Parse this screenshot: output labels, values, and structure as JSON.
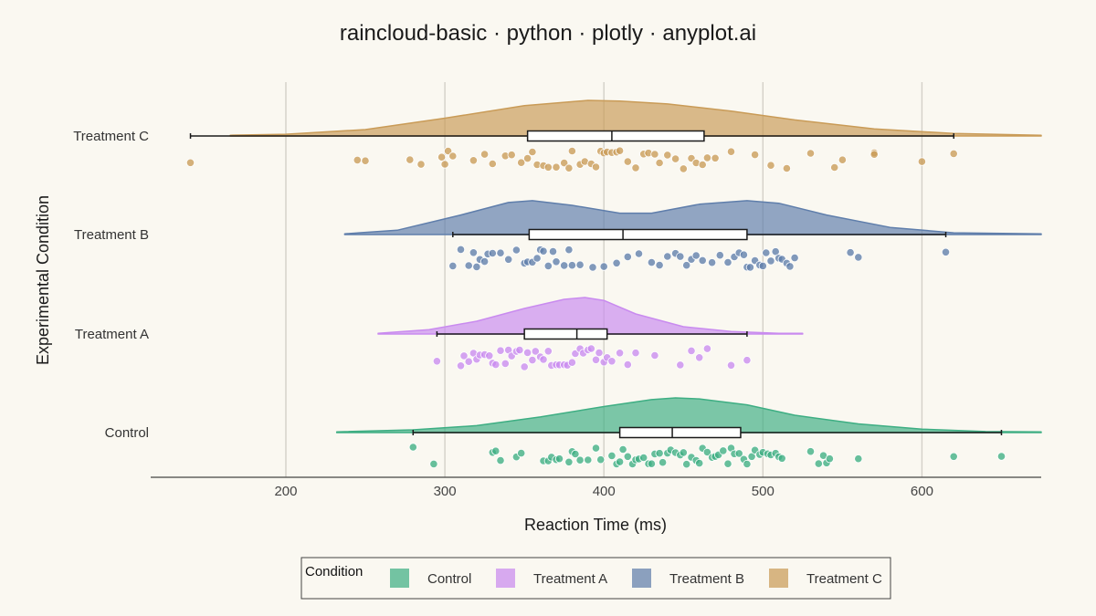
{
  "chart_data": {
    "type": "raincloud",
    "title": "raincloud-basic · python · plotly · anyplot.ai",
    "xlabel": "Reaction Time (ms)",
    "ylabel": "Experimental Condition",
    "xlim": [
      115,
      675
    ],
    "xticks": [
      200,
      300,
      400,
      500,
      600
    ],
    "grid": true,
    "legend": {
      "title": "Condition",
      "position": "bottom-center",
      "entries": [
        "Control",
        "Treatment A",
        "Treatment B",
        "Treatment C"
      ]
    },
    "categories": [
      "Control",
      "Treatment A",
      "Treatment B",
      "Treatment C"
    ],
    "colors": {
      "Control": "#3EAE83",
      "Treatment A": "#C98BEF",
      "Treatment B": "#5F7EAB",
      "Treatment C": "#C99B57"
    },
    "series": [
      {
        "name": "Control",
        "box": {
          "whisker_low": 280,
          "q1": 410,
          "median": 443,
          "q3": 486,
          "whisker_high": 650
        },
        "density": {
          "x": [
            232,
            280,
            320,
            360,
            400,
            430,
            445,
            460,
            490,
            520,
            560,
            600,
            640,
            675
          ],
          "y": [
            0.02,
            0.08,
            0.2,
            0.45,
            0.75,
            0.95,
            1.0,
            0.97,
            0.8,
            0.5,
            0.25,
            0.1,
            0.03,
            0.02
          ]
        },
        "points": [
          280,
          293,
          330,
          332,
          335,
          345,
          348,
          362,
          365,
          367,
          370,
          372,
          378,
          380,
          382,
          385,
          390,
          395,
          398,
          405,
          408,
          410,
          412,
          415,
          418,
          420,
          422,
          425,
          428,
          430,
          432,
          435,
          437,
          440,
          442,
          445,
          448,
          450,
          452,
          455,
          458,
          460,
          462,
          465,
          468,
          470,
          472,
          475,
          478,
          480,
          482,
          485,
          488,
          490,
          493,
          495,
          498,
          500,
          503,
          505,
          508,
          510,
          512,
          530,
          535,
          538,
          540,
          542,
          560,
          620,
          650
        ]
      },
      {
        "name": "Treatment A",
        "box": {
          "whisker_low": 295,
          "q1": 350,
          "median": 383,
          "q3": 402,
          "whisker_high": 490
        },
        "density": {
          "x": [
            258,
            290,
            320,
            350,
            375,
            388,
            400,
            420,
            450,
            480,
            510,
            525
          ],
          "y": [
            0.02,
            0.12,
            0.35,
            0.7,
            0.95,
            1.0,
            0.92,
            0.55,
            0.2,
            0.07,
            0.02,
            0.02
          ]
        },
        "points": [
          295,
          310,
          312,
          315,
          318,
          320,
          322,
          325,
          328,
          330,
          332,
          335,
          338,
          340,
          342,
          345,
          347,
          350,
          352,
          355,
          357,
          360,
          362,
          365,
          367,
          370,
          372,
          375,
          377,
          380,
          382,
          385,
          387,
          390,
          392,
          395,
          397,
          400,
          402,
          405,
          410,
          415,
          420,
          432,
          448,
          455,
          460,
          465,
          480,
          490
        ]
      },
      {
        "name": "Treatment B",
        "box": {
          "whisker_low": 305,
          "q1": 353,
          "median": 412,
          "q3": 490,
          "whisker_high": 615
        },
        "density": {
          "x": [
            237,
            270,
            310,
            340,
            355,
            380,
            410,
            430,
            460,
            490,
            510,
            540,
            580,
            620,
            675
          ],
          "y": [
            0.02,
            0.12,
            0.55,
            0.9,
            0.95,
            0.82,
            0.6,
            0.6,
            0.85,
            0.95,
            0.88,
            0.55,
            0.2,
            0.05,
            0.02
          ]
        },
        "points": [
          305,
          310,
          315,
          318,
          320,
          322,
          325,
          327,
          330,
          335,
          340,
          345,
          350,
          352,
          355,
          358,
          360,
          362,
          365,
          368,
          370,
          375,
          378,
          380,
          385,
          393,
          400,
          408,
          415,
          422,
          430,
          435,
          440,
          445,
          448,
          452,
          455,
          458,
          462,
          468,
          473,
          478,
          482,
          485,
          488,
          490,
          492,
          495,
          498,
          500,
          502,
          505,
          508,
          510,
          512,
          515,
          517,
          520,
          555,
          560,
          615
        ]
      },
      {
        "name": "Treatment C",
        "box": {
          "whisker_low": 140,
          "q1": 352,
          "median": 405,
          "q3": 463,
          "whisker_high": 620
        },
        "density": {
          "x": [
            165,
            200,
            250,
            300,
            350,
            390,
            410,
            440,
            480,
            520,
            570,
            620,
            675
          ],
          "y": [
            0.02,
            0.05,
            0.18,
            0.5,
            0.85,
            1.0,
            0.98,
            0.9,
            0.7,
            0.45,
            0.2,
            0.07,
            0.02
          ]
        },
        "points": [
          140,
          245,
          250,
          278,
          285,
          298,
          300,
          302,
          305,
          318,
          325,
          330,
          338,
          342,
          348,
          352,
          355,
          358,
          362,
          365,
          370,
          375,
          378,
          380,
          385,
          388,
          392,
          395,
          398,
          400,
          402,
          405,
          408,
          410,
          415,
          420,
          425,
          428,
          432,
          435,
          440,
          445,
          450,
          455,
          458,
          462,
          465,
          470,
          480,
          495,
          505,
          515,
          530,
          545,
          550,
          570,
          570,
          600,
          620
        ]
      }
    ]
  }
}
